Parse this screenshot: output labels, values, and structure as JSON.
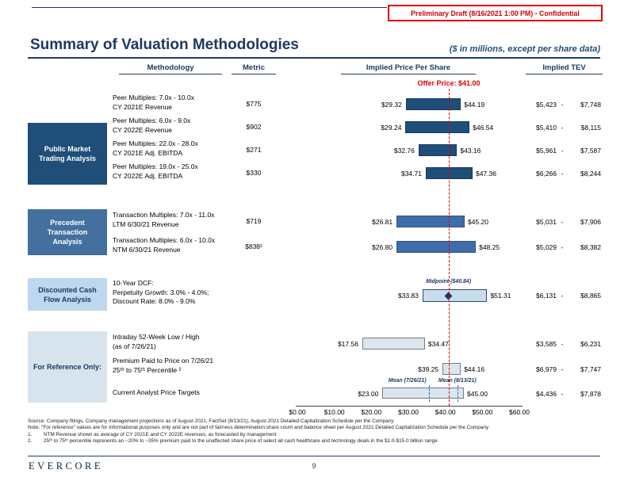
{
  "banner": "Preliminary Draft (8/16/2021 1:00 PM) - Confidential",
  "header": {
    "title": "Summary of Valuation Methodologies",
    "subtitle": "($ in millions, except per share data)"
  },
  "columns": {
    "methodology": "Methodology",
    "metric": "Metric",
    "price": "Implied Price Per Share",
    "tev": "Implied TEV"
  },
  "offer": {
    "label": "Offer Price: $41.00",
    "value": 41.0
  },
  "tev_separator": "-",
  "chart_data": {
    "type": "bar",
    "subtype": "range-football-field",
    "title": "Summary of Valuation Methodologies",
    "x_axis": {
      "min": 0,
      "max": 60,
      "ticks": [
        "$0.00",
        "$10.00",
        "$20.00",
        "$30.00",
        "$40.00",
        "$50.00",
        "$60.00"
      ]
    },
    "offer_price": 41.0,
    "groups": [
      {
        "id": "public",
        "label_lines": [
          "Public Market",
          "Trading Analysis"
        ]
      },
      {
        "id": "precedent",
        "label_lines": [
          "Precedent",
          "Transaction",
          "Analysis"
        ]
      },
      {
        "id": "dcf",
        "label_lines": [
          "Discounted Cash",
          "Flow Analysis"
        ]
      },
      {
        "id": "ref",
        "label_lines": [
          "For Reference Only:"
        ]
      }
    ],
    "rows": [
      {
        "group": "public",
        "methodology": [
          "Peer Multiples: 7.0x - 10.0x",
          "CY 2021E Revenue"
        ],
        "metric": "$775",
        "low": 29.32,
        "high": 44.19,
        "low_label": "$29.32",
        "high_label": "$44.19",
        "tev_low": "$5,423",
        "tev_high": "$7,748"
      },
      {
        "group": "public",
        "methodology": [
          "Peer Multiples: 6.0x - 9.0x",
          "CY 2022E Revenue"
        ],
        "metric": "$902",
        "low": 29.24,
        "high": 46.54,
        "low_label": "$29.24",
        "high_label": "$46.54",
        "tev_low": "$5,410",
        "tev_high": "$8,115"
      },
      {
        "group": "public",
        "methodology": [
          "Peer Multiples: 22.0x - 28.0x",
          "CY 2021E Adj. EBITDA"
        ],
        "metric": "$271",
        "low": 32.76,
        "high": 43.16,
        "low_label": "$32.76",
        "high_label": "$43.16",
        "tev_low": "$5,961",
        "tev_high": "$7,587"
      },
      {
        "group": "public",
        "methodology": [
          "Peer Multiples: 19.0x - 25.0x",
          "CY 2022E Adj. EBITDA"
        ],
        "metric": "$330",
        "low": 34.71,
        "high": 47.36,
        "low_label": "$34.71",
        "high_label": "$47.36",
        "tev_low": "$6,266",
        "tev_high": "$8,244"
      },
      {
        "group": "precedent",
        "methodology": [
          "Transaction Multiples: 7.0x - 11.0x",
          "LTM 6/30/21 Revenue"
        ],
        "metric": "$719",
        "low": 26.81,
        "high": 45.2,
        "low_label": "$26.81",
        "high_label": "$45.20",
        "tev_low": "$5,031",
        "tev_high": "$7,906"
      },
      {
        "group": "precedent",
        "methodology": [
          "Transaction Multiples: 6.0x - 10.0x",
          "NTM 6/30/21 Revenue"
        ],
        "metric": "$838¹",
        "low": 26.8,
        "high": 48.25,
        "low_label": "$26.80",
        "high_label": "$48.25",
        "tev_low": "$5,029",
        "tev_high": "$8,382"
      },
      {
        "group": "dcf",
        "methodology": [
          "10-Year DCF:",
          "Perpetuity Growth: 3.0% - 4.0%;",
          "Discount Rate: 8.0% - 9.0%"
        ],
        "metric": "",
        "low": 33.83,
        "high": 51.31,
        "low_label": "$33.83",
        "high_label": "$51.31",
        "tev_low": "$6,131",
        "tev_high": "$8,865",
        "midpoint": {
          "label": "Midpoint ($40.84)",
          "value": 40.84
        }
      },
      {
        "group": "ref",
        "methodology": [
          "Intraday 52-Week Low / High",
          "(as of 7/26/21)"
        ],
        "metric": "",
        "low": 17.56,
        "high": 34.47,
        "low_label": "$17.56",
        "high_label": "$34.47",
        "tev_low": "$3,585",
        "tev_high": "$6,231"
      },
      {
        "group": "ref",
        "methodology": [
          "Premium Paid to Price on 7/26/21",
          "25ᵗʰ to 75ᵗʰ Percentile ²"
        ],
        "metric": "",
        "low": 39.25,
        "high": 44.16,
        "low_label": "$39.25",
        "high_label": "$44.16",
        "tev_low": "$6,979",
        "tev_high": "$7,747"
      },
      {
        "group": "ref",
        "methodology": [
          "Current Analyst Price Targets"
        ],
        "metric": "",
        "low": 23.0,
        "high": 45.0,
        "low_label": "$23.00",
        "high_label": "$45.00",
        "tev_low": "$4,436",
        "tev_high": "$7,878",
        "markers": [
          {
            "label": "Mean (7/26/21)",
            "value": 35.5
          },
          {
            "label": "Mean (8/13/21)",
            "value": 43.25
          }
        ]
      }
    ]
  },
  "footnotes": [
    {
      "num": "",
      "text": "Source: Company filings, Company management projections as of August 2021, FactSet (8/13/21), August 2021 Detailed Capitalization Schedule per the Company"
    },
    {
      "num": "",
      "text": "Note: \"For reference\" values are for informational purposes only and are not part of fairness determination;share count and balance sheet per August 2021 Detailed Capitalization Schedule per the Company"
    },
    {
      "num": "1.",
      "text": "NTM Revenue shown as average of CY 2021E and CY 2022E revenues, as forecasted by management"
    },
    {
      "num": "2.",
      "text": "25ᵗʰ to 75ᵗʰ percentile represents an ~20% to ~35% premium paid to the unaffected share price of select all cash healthcare and technology deals in the $1.0-$15.0 billion range"
    }
  ],
  "footer": {
    "logo": "EVERCORE",
    "page": "9"
  }
}
